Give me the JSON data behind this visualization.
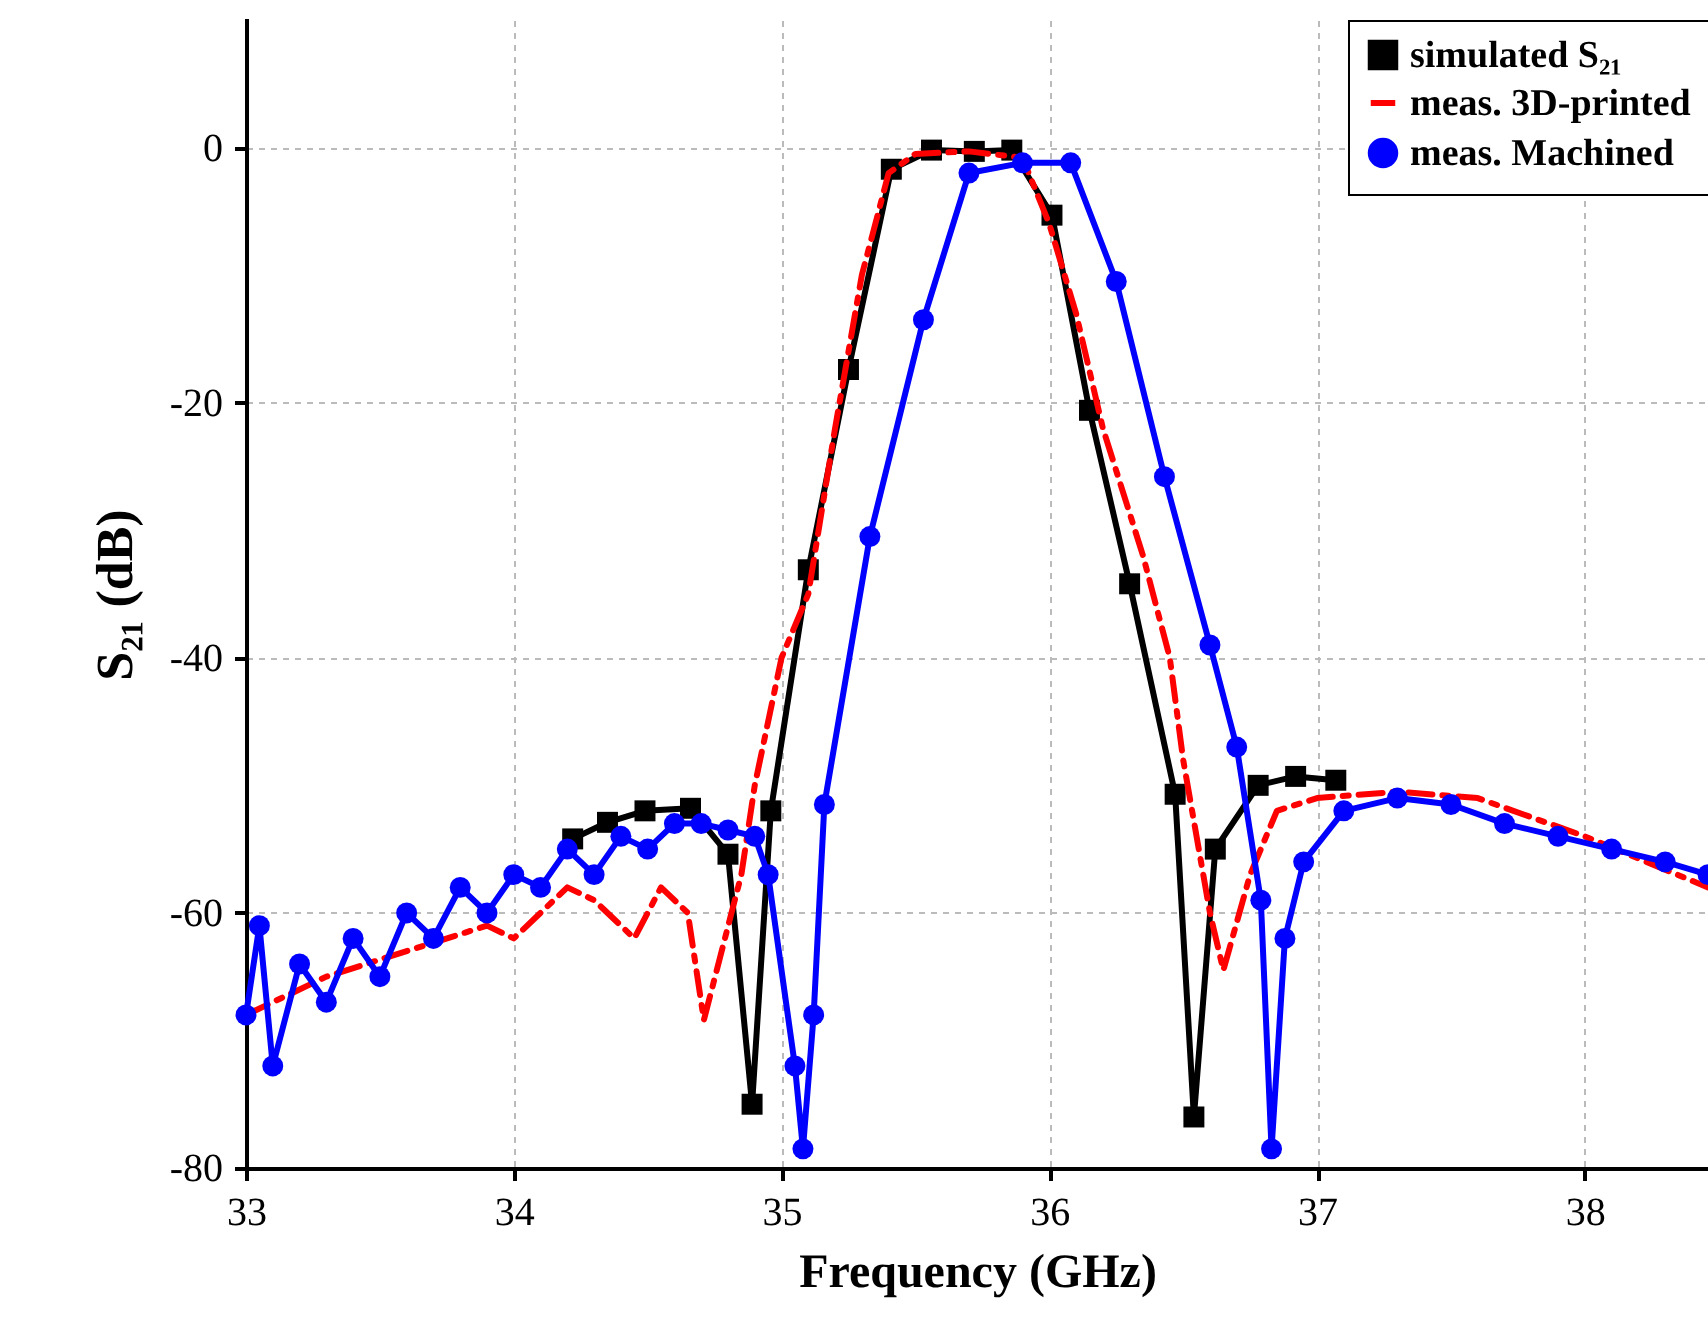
{
  "chart_data": {
    "type": "line",
    "xlabel": "Frequency (GHz)",
    "ylabel": "S₂₁ (dB)",
    "xlim": [
      33,
      38.46
    ],
    "ylim": [
      -80,
      10
    ],
    "xticks": [
      33,
      34,
      35,
      36,
      37,
      38
    ],
    "yticks": [
      -80,
      -60,
      -40,
      -20,
      0
    ],
    "grid": true,
    "legend": "top right",
    "series": [
      {
        "name": "simulated S₂₁",
        "color": "#000000",
        "marker": "square",
        "line_style": "solid",
        "x": [
          34.22,
          34.35,
          34.49,
          34.66,
          34.8,
          34.89,
          34.96,
          35.1,
          35.25,
          35.41,
          35.56,
          35.72,
          35.86,
          36.01,
          36.15,
          36.3,
          36.47,
          36.54,
          36.62,
          36.78,
          36.92,
          37.07
        ],
        "values": [
          -54.2,
          -52.9,
          -52,
          -51.8,
          -55.4,
          -75,
          -52,
          -33.1,
          -17.4,
          -1.7,
          -0.2,
          -0.3,
          -0.2,
          -5.3,
          -20.6,
          -34.2,
          -50.7,
          -76,
          -55,
          -50,
          -49.3,
          -49.6
        ]
      },
      {
        "name": "meas. 3D-printed",
        "color": "#ff0000",
        "marker": "none",
        "line_style": "dashed",
        "x": [
          33,
          33.3,
          33.6,
          33.9,
          34,
          34.2,
          34.3,
          34.45,
          34.55,
          34.65,
          34.71,
          34.85,
          34.9,
          35,
          35.1,
          35.2,
          35.3,
          35.4,
          35.5,
          35.7,
          35.9,
          36,
          36.1,
          36.2,
          36.35,
          36.45,
          36.5,
          36.6,
          36.65,
          36.75,
          36.85,
          37,
          37.3,
          37.6,
          38,
          38.46
        ],
        "values": [
          -68,
          -65,
          -63,
          -61,
          -62,
          -58,
          -59,
          -62,
          -58,
          -60,
          -68.4,
          -57,
          -50,
          -40,
          -35,
          -22,
          -10,
          -2,
          -0.5,
          -0.3,
          -0.8,
          -6,
          -13,
          -22,
          -32,
          -40,
          -48,
          -60,
          -64.5,
          -57,
          -52,
          -51,
          -50.5,
          -51,
          -54,
          -58
        ]
      },
      {
        "name": "meas. Machined",
        "color": "#0000ff",
        "marker": "circle",
        "line_style": "solid",
        "x": [
          33,
          33.05,
          33.1,
          33.2,
          33.3,
          33.4,
          33.5,
          33.6,
          33.7,
          33.8,
          33.9,
          34,
          34.1,
          34.2,
          34.3,
          34.4,
          34.5,
          34.6,
          34.7,
          34.8,
          34.9,
          34.95,
          35.05,
          35.08,
          35.12,
          35.16,
          35.33,
          35.53,
          35.7,
          35.9,
          36.08,
          36.25,
          36.43,
          36.6,
          36.7,
          36.79,
          36.83,
          36.88,
          36.95,
          37.1,
          37.3,
          37.5,
          37.7,
          37.9,
          38.1,
          38.3,
          38.46
        ],
        "values": [
          -68,
          -61,
          -72,
          -64,
          -67,
          -62,
          -65,
          -60,
          -62,
          -58,
          -60,
          -57,
          -58,
          -55,
          -57,
          -54,
          -55,
          -53,
          -53,
          -53.5,
          -54,
          -57,
          -72,
          -78.5,
          -68,
          -51.5,
          -30.5,
          -13.5,
          -2,
          -1.2,
          -1.2,
          -10.5,
          -25.8,
          -39,
          -47,
          -59,
          -78.5,
          -62,
          -56,
          -52,
          -51,
          -51.5,
          -53,
          -54,
          -55,
          -56,
          -57
        ]
      }
    ]
  }
}
